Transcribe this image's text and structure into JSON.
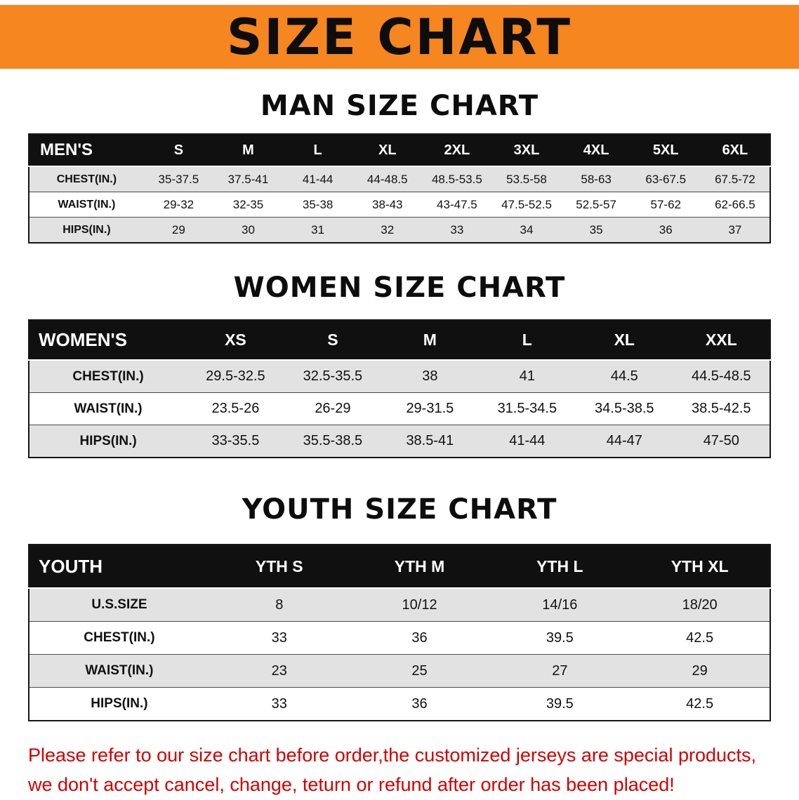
{
  "banner": {
    "title": "SIZE CHART",
    "bg_color": "#F6861F"
  },
  "sections": {
    "men": {
      "heading": "MAN SIZE CHART",
      "table": {
        "header": [
          "MEN'S",
          "S",
          "M",
          "L",
          "XL",
          "2XL",
          "3XL",
          "4XL",
          "5XL",
          "6XL"
        ],
        "rows": [
          [
            "CHEST(IN.)",
            "35-37.5",
            "37.5-41",
            "41-44",
            "44-48.5",
            "48.5-53.5",
            "53.5-58",
            "58-63",
            "63-67.5",
            "67.5-72"
          ],
          [
            "WAIST(IN.)",
            "29-32",
            "32-35",
            "35-38",
            "38-43",
            "43-47.5",
            "47.5-52.5",
            "52.5-57",
            "57-62",
            "62-66.5"
          ],
          [
            "HIPS(IN.)",
            "29",
            "30",
            "31",
            "32",
            "33",
            "34",
            "35",
            "36",
            "37"
          ]
        ]
      }
    },
    "women": {
      "heading": "WOMEN SIZE CHART",
      "table": {
        "header": [
          "WOMEN'S",
          "XS",
          "S",
          "M",
          "L",
          "XL",
          "XXL"
        ],
        "rows": [
          [
            "CHEST(IN.)",
            "29.5-32.5",
            "32.5-35.5",
            "38",
            "41",
            "44.5",
            "44.5-48.5"
          ],
          [
            "WAIST(IN.)",
            "23.5-26",
            "26-29",
            "29-31.5",
            "31.5-34.5",
            "34.5-38.5",
            "38.5-42.5"
          ],
          [
            "HIPS(IN.)",
            "33-35.5",
            "35.5-38.5",
            "38.5-41",
            "41-44",
            "44-47",
            "47-50"
          ]
        ]
      }
    },
    "youth": {
      "heading": "YOUTH SIZE CHART",
      "table": {
        "header": [
          "YOUTH",
          "YTH S",
          "YTH M",
          "YTH L",
          "YTH XL"
        ],
        "rows": [
          [
            "U.S.SIZE",
            "8",
            "10/12",
            "14/16",
            "18/20"
          ],
          [
            "CHEST(IN.)",
            "33",
            "36",
            "39.5",
            "42.5"
          ],
          [
            "WAIST(IN.)",
            "23",
            "25",
            "27",
            "29"
          ],
          [
            "HIPS(IN.)",
            "33",
            "36",
            "39.5",
            "42.5"
          ]
        ]
      }
    }
  },
  "footer": {
    "line1": "Please refer to our size chart before order,the customized jerseys are special products,",
    "line2": "we don't accept cancel, change, teturn or refund after order has been placed!",
    "text_color": "#d10000"
  }
}
